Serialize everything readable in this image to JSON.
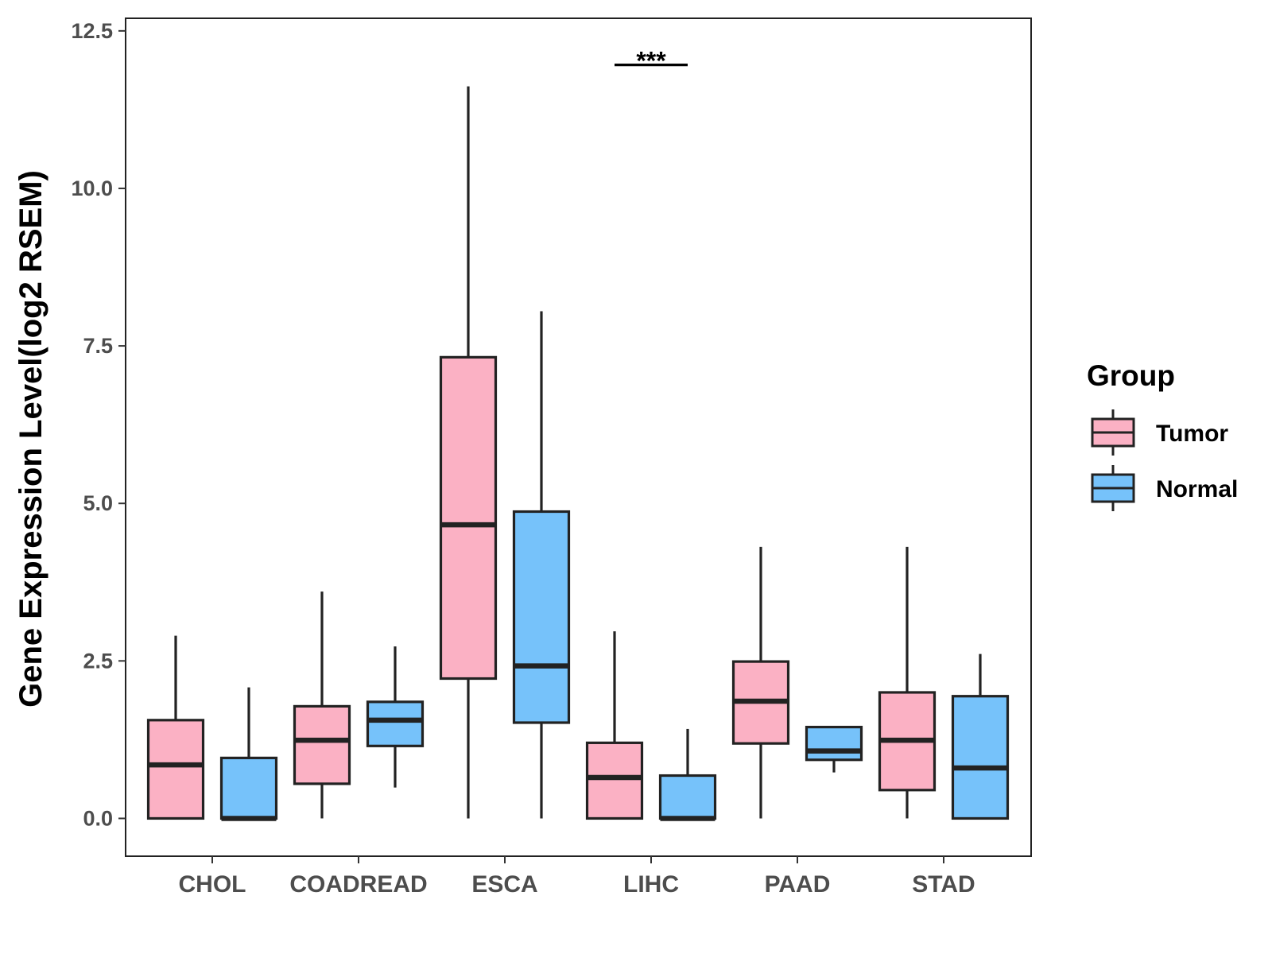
{
  "chart_data": {
    "type": "boxplot",
    "title": "",
    "xlabel": "",
    "ylabel": "Gene Expression Level(log2 RSEM)",
    "ylim": [
      -0.6,
      12.7
    ],
    "yticks": [
      0.0,
      2.5,
      5.0,
      7.5,
      10.0,
      12.5
    ],
    "ytick_labels": [
      "0.0",
      "2.5",
      "5.0",
      "7.5",
      "10.0",
      "12.5"
    ],
    "categories": [
      "CHOL",
      "COADREAD",
      "ESCA",
      "LIHC",
      "PAAD",
      "STAD"
    ],
    "legend": {
      "title": "Group",
      "position": "right",
      "entries": [
        "Tumor",
        "Normal"
      ]
    },
    "colors": {
      "Tumor": "#fbb1c4",
      "Normal": "#76c2fa",
      "outline": "#222222"
    },
    "series": [
      {
        "name": "Tumor",
        "boxes": [
          {
            "category": "CHOL",
            "min": 0.0,
            "q1": 0.0,
            "median": 0.85,
            "q3": 1.56,
            "max": 2.9
          },
          {
            "category": "COADREAD",
            "min": 0.0,
            "q1": 0.55,
            "median": 1.24,
            "q3": 1.78,
            "max": 3.6
          },
          {
            "category": "ESCA",
            "min": 0.0,
            "q1": 2.22,
            "median": 4.66,
            "q3": 7.32,
            "max": 11.62
          },
          {
            "category": "LIHC",
            "min": 0.0,
            "q1": 0.0,
            "median": 0.65,
            "q3": 1.2,
            "max": 2.97
          },
          {
            "category": "PAAD",
            "min": 0.0,
            "q1": 1.19,
            "median": 1.86,
            "q3": 2.49,
            "max": 4.31
          },
          {
            "category": "STAD",
            "min": 0.0,
            "q1": 0.45,
            "median": 1.24,
            "q3": 2.0,
            "max": 4.31
          }
        ]
      },
      {
        "name": "Normal",
        "boxes": [
          {
            "category": "CHOL",
            "min": 0.0,
            "q1": 0.0,
            "median": 0.0,
            "q3": 0.96,
            "max": 2.08
          },
          {
            "category": "COADREAD",
            "min": 0.49,
            "q1": 1.15,
            "median": 1.56,
            "q3": 1.85,
            "max": 2.73
          },
          {
            "category": "ESCA",
            "min": 0.0,
            "q1": 1.52,
            "median": 2.42,
            "q3": 4.87,
            "max": 8.05
          },
          {
            "category": "LIHC",
            "min": 0.0,
            "q1": 0.0,
            "median": 0.0,
            "q3": 0.68,
            "max": 1.42
          },
          {
            "category": "PAAD",
            "min": 0.73,
            "q1": 0.93,
            "median": 1.07,
            "q3": 1.45,
            "max": 1.45
          },
          {
            "category": "STAD",
            "min": 0.0,
            "q1": 0.0,
            "median": 0.8,
            "q3": 1.94,
            "max": 2.61
          }
        ]
      }
    ],
    "annotations": [
      {
        "text": "***",
        "category": "LIHC",
        "y": 11.96
      }
    ]
  }
}
